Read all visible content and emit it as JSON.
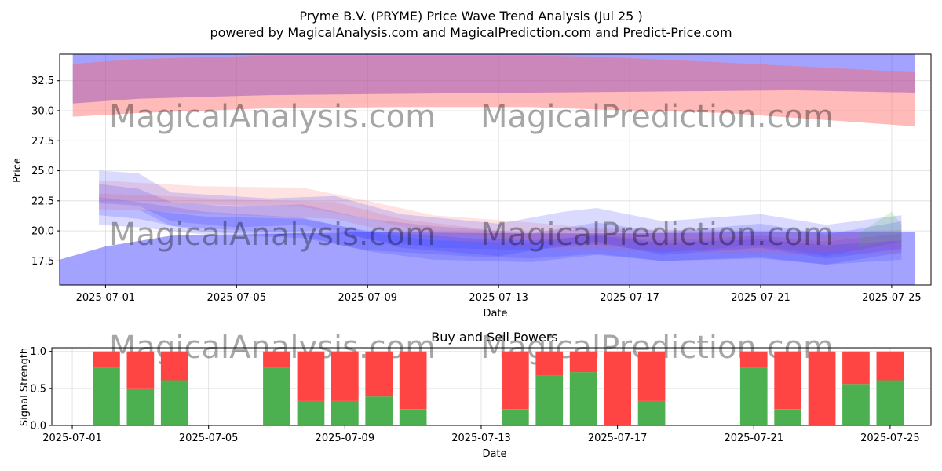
{
  "title": "Pryme B.V. (PRYME) Price Wave Trend Analysis (Jul 25 )",
  "subtitle": "powered by MagicalAnalysis.com and MagicalPrediction.com and Predict-Price.com",
  "watermarks": [
    "MagicalAnalysis.com",
    "MagicalPrediction.com"
  ],
  "colors": {
    "buy": "#4caf50",
    "sell": "#ff4444",
    "blue_band": "#3333ff",
    "red_band": "#ff6666",
    "purple_band": "#a050a0"
  },
  "chart_data": [
    {
      "type": "area",
      "xlabel": "Date",
      "ylabel": "Price",
      "xlim": [
        "2025-06-29.6",
        "2025-07-26.2"
      ],
      "ylim": [
        15.5,
        34.7
      ],
      "x_ticks": [
        "2025-07-01",
        "2025-07-05",
        "2025-07-09",
        "2025-07-13",
        "2025-07-17",
        "2025-07-21",
        "2025-07-25"
      ],
      "y_ticks": [
        "17.5",
        "20.0",
        "22.5",
        "25.0",
        "27.5",
        "30.0",
        "32.5"
      ],
      "grid": true,
      "bands": [
        {
          "color": "blue",
          "x": [
            "2025-06-30.0",
            "2025-07-02.0",
            "2025-07-06.0",
            "2025-07-10.0",
            "2025-07-14.0",
            "2025-07-18.0",
            "2025-07-22.0",
            "2025-07-25.7"
          ],
          "upper": [
            35.5,
            35.5,
            35.5,
            35.5,
            35.5,
            35.5,
            35.5,
            35.5
          ],
          "lower": [
            30.6,
            31.0,
            31.3,
            31.4,
            31.5,
            31.6,
            31.7,
            31.5
          ]
        },
        {
          "color": "red",
          "x": [
            "2025-06-30.0",
            "2025-07-02.0",
            "2025-07-06.0",
            "2025-07-10.0",
            "2025-07-14.0",
            "2025-07-16.0",
            "2025-07-20.0",
            "2025-07-25.7"
          ],
          "upper": [
            33.9,
            34.3,
            34.6,
            34.6,
            34.6,
            34.5,
            34.0,
            33.2
          ],
          "lower": [
            29.5,
            29.8,
            30.2,
            30.3,
            30.3,
            30.1,
            29.8,
            28.7
          ]
        },
        {
          "color": "blue",
          "x": [
            "2025-06-29.6",
            "2025-07-01.0",
            "2025-07-03.0",
            "2025-07-09.0",
            "2025-07-14.0",
            "2025-07-17.0",
            "2025-07-21.0",
            "2025-07-25.7"
          ],
          "upper": [
            17.6,
            18.7,
            19.6,
            19.9,
            19.8,
            19.8,
            19.9,
            19.9
          ],
          "lower": [
            15.5,
            15.5,
            15.5,
            15.5,
            15.5,
            15.5,
            15.5,
            15.5
          ]
        },
        {
          "color": "blue",
          "x": [
            "2025-06-30.8",
            "2025-07-02.0",
            "2025-07-03.0",
            "2025-07-05.0",
            "2025-07-07.0",
            "2025-07-09.0",
            "2025-07-11.0",
            "2025-07-14.0",
            "2025-07-16.0",
            "2025-07-18.0",
            "2025-07-21.0",
            "2025-07-23.0",
            "2025-07-25.3"
          ],
          "upper": [
            23.9,
            23.5,
            22.4,
            22.0,
            22.2,
            21.0,
            20.4,
            19.8,
            20.7,
            19.9,
            20.6,
            19.7,
            20.8
          ],
          "lower": [
            22.3,
            22.1,
            20.8,
            20.3,
            20.5,
            19.3,
            18.6,
            18.4,
            18.9,
            18.2,
            18.8,
            17.9,
            19.1
          ]
        },
        {
          "color": "blue",
          "x": [
            "2025-06-30.8",
            "2025-07-02.0",
            "2025-07-04.0",
            "2025-07-07.0",
            "2025-07-09.0",
            "2025-07-11.0",
            "2025-07-14.0",
            "2025-07-16.0",
            "2025-07-18.0",
            "2025-07-21.0",
            "2025-07-23.0",
            "2025-07-25.3"
          ],
          "upper": [
            22.8,
            22.4,
            21.6,
            21.1,
            19.9,
            19.2,
            19.0,
            19.7,
            19.2,
            19.6,
            19.1,
            19.8
          ],
          "lower": [
            21.3,
            21.0,
            19.9,
            19.6,
            18.3,
            17.6,
            17.4,
            18.0,
            17.5,
            17.8,
            17.2,
            18.2
          ]
        },
        {
          "color": "red",
          "x": [
            "2025-06-30.8",
            "2025-07-02.0",
            "2025-07-04.0",
            "2025-07-07.0",
            "2025-07-09.0",
            "2025-07-11.0",
            "2025-07-14.0",
            "2025-07-16.0",
            "2025-07-18.0",
            "2025-07-21.0",
            "2025-07-23.0",
            "2025-07-25.3"
          ],
          "upper": [
            24.2,
            24.0,
            23.7,
            23.6,
            22.5,
            21.3,
            20.7,
            20.2,
            20.1,
            20.0,
            19.8,
            20.1
          ],
          "lower": [
            22.6,
            22.5,
            22.2,
            22.0,
            21.0,
            19.8,
            19.2,
            18.8,
            18.6,
            18.5,
            18.3,
            18.7
          ]
        },
        {
          "color": "red",
          "x": [
            "2025-06-30.8",
            "2025-07-02.0",
            "2025-07-05.0",
            "2025-07-08.0",
            "2025-07-10.0",
            "2025-07-13.0",
            "2025-07-16.0",
            "2025-07-19.0",
            "2025-07-22.0",
            "2025-07-25.3"
          ],
          "upper": [
            23.1,
            23.0,
            22.6,
            22.4,
            21.0,
            20.0,
            19.8,
            19.6,
            19.4,
            19.5
          ],
          "lower": [
            21.8,
            21.7,
            21.3,
            21.0,
            19.7,
            18.7,
            18.4,
            18.2,
            18.0,
            18.1
          ]
        },
        {
          "color": "blue",
          "x": [
            "2025-06-30.8",
            "2025-07-02.0",
            "2025-07-03.0",
            "2025-07-06.0",
            "2025-07-08.0",
            "2025-07-10.0",
            "2025-07-13.0",
            "2025-07-15.0",
            "2025-07-16.0",
            "2025-07-18.0",
            "2025-07-21.0",
            "2025-07-23.0",
            "2025-07-25.3"
          ],
          "upper": [
            25.0,
            24.8,
            23.2,
            22.7,
            22.9,
            21.4,
            20.6,
            21.6,
            21.9,
            20.8,
            21.4,
            20.5,
            21.3
          ],
          "lower": [
            22.0,
            21.8,
            20.4,
            19.9,
            20.1,
            18.6,
            17.9,
            18.8,
            19.1,
            18.0,
            18.6,
            17.7,
            18.5
          ]
        },
        {
          "color": "blue",
          "x": [
            "2025-06-30.8",
            "2025-07-02.0",
            "2025-07-04.0",
            "2025-07-07.0",
            "2025-07-09.0",
            "2025-07-12.0",
            "2025-07-14.0",
            "2025-07-16.0",
            "2025-07-18.0",
            "2025-07-21.0",
            "2025-07-23.0",
            "2025-07-25.3"
          ],
          "upper": [
            22.0,
            21.8,
            21.2,
            21.0,
            20.0,
            19.4,
            19.2,
            19.6,
            19.0,
            19.3,
            18.8,
            19.2
          ],
          "lower": [
            20.5,
            20.3,
            19.7,
            19.4,
            18.4,
            17.9,
            17.7,
            18.1,
            17.5,
            17.7,
            17.2,
            17.6
          ]
        },
        {
          "color": "green",
          "x": [
            "2025-07-24.0",
            "2025-07-25.0",
            "2025-07-25.3"
          ],
          "upper": [
            19.8,
            21.6,
            20.5
          ],
          "lower": [
            18.6,
            19.2,
            19.0
          ]
        }
      ]
    },
    {
      "type": "bar",
      "title": "Buy and Sell Powers",
      "xlabel": "Date",
      "ylabel": "Signal Strength",
      "xlim": [
        "2025-06-30.4",
        "2025-07-26.2"
      ],
      "ylim": [
        0,
        1.05
      ],
      "x_ticks": [
        "2025-07-01",
        "2025-07-05",
        "2025-07-09",
        "2025-07-13",
        "2025-07-17",
        "2025-07-21",
        "2025-07-25"
      ],
      "y_ticks": [
        "0.0",
        "0.5",
        "1.0"
      ],
      "grid": true,
      "categories": [
        "2025-07-02",
        "2025-07-03",
        "2025-07-04",
        "2025-07-07",
        "2025-07-08",
        "2025-07-09",
        "2025-07-10",
        "2025-07-11",
        "2025-07-14",
        "2025-07-15",
        "2025-07-16",
        "2025-07-17",
        "2025-07-18",
        "2025-07-21",
        "2025-07-22",
        "2025-07-23",
        "2025-07-24",
        "2025-07-25"
      ],
      "series": [
        {
          "name": "Buy",
          "values": [
            0.78,
            0.5,
            0.61,
            0.78,
            0.33,
            0.33,
            0.39,
            0.22,
            0.22,
            0.67,
            0.72,
            0.0,
            0.33,
            0.78,
            0.22,
            0.0,
            0.56,
            0.61
          ]
        },
        {
          "name": "Sell",
          "values": [
            0.22,
            0.5,
            0.39,
            0.22,
            0.67,
            0.67,
            0.61,
            0.78,
            0.78,
            0.33,
            0.28,
            1.0,
            0.67,
            0.22,
            0.78,
            1.0,
            0.44,
            0.39
          ]
        }
      ]
    }
  ]
}
